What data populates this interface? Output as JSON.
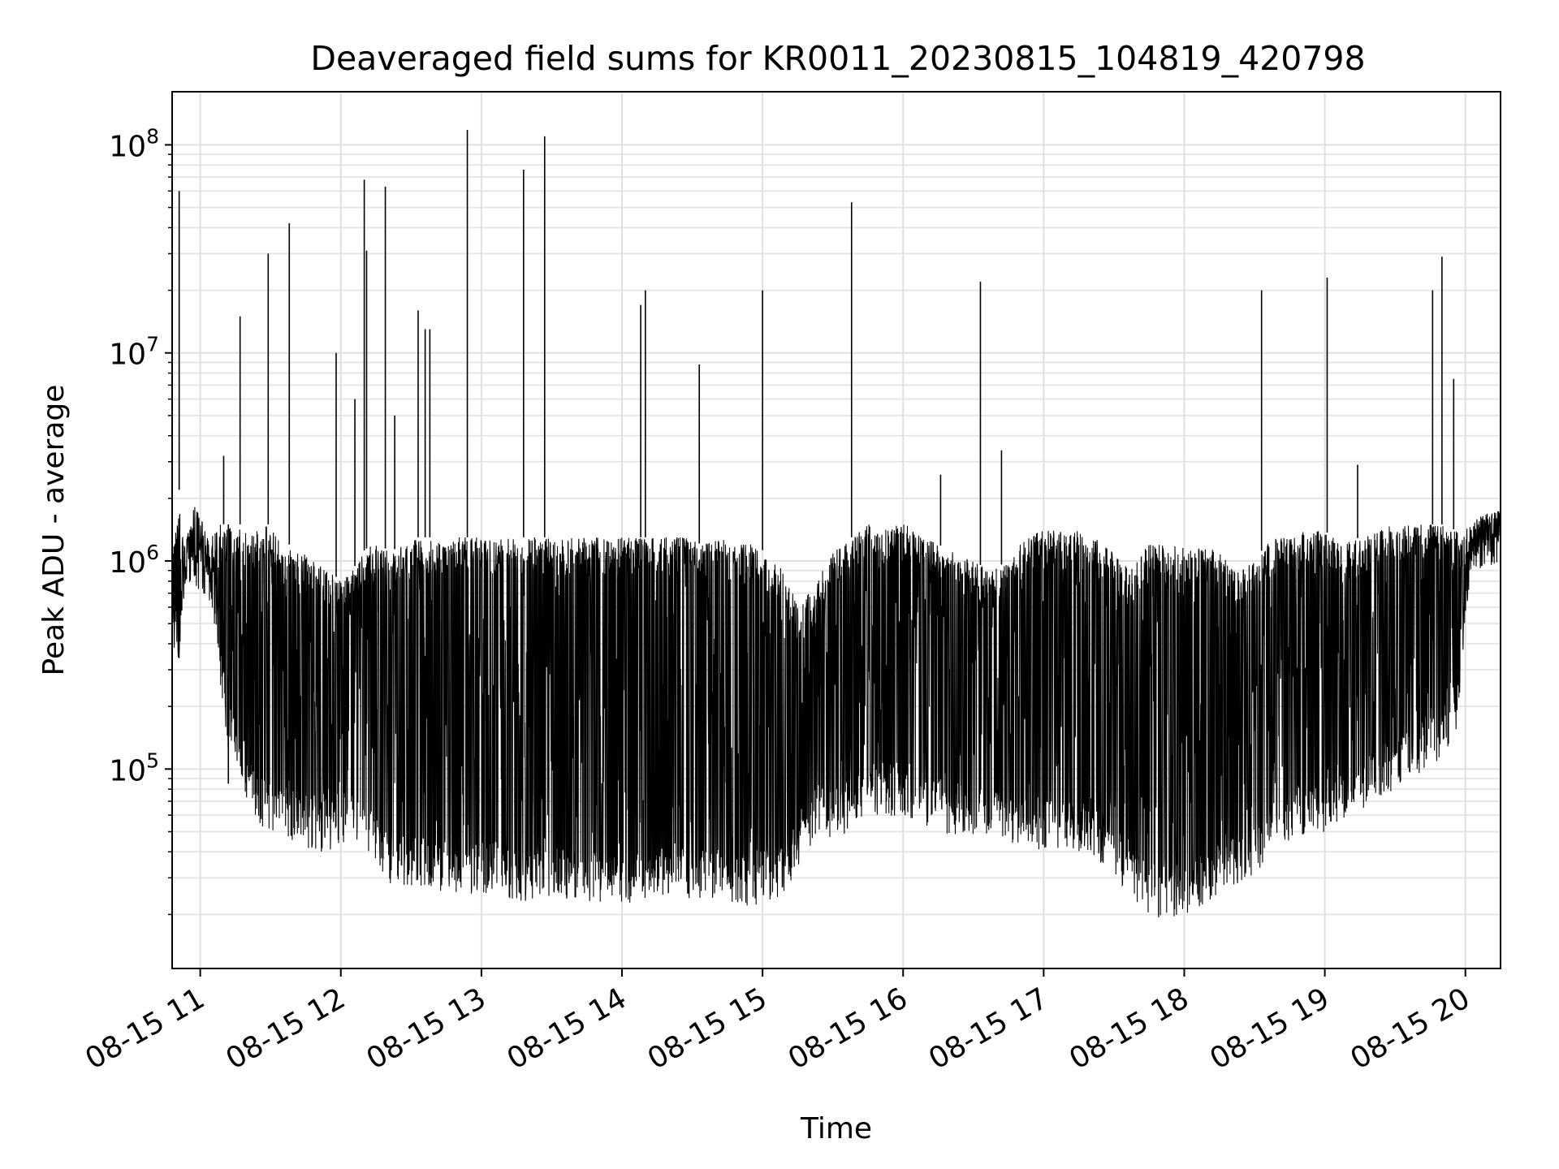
{
  "chart_data": {
    "type": "line",
    "title": "Deaveraged field sums for KR0011_20230815_104819_420798",
    "xlabel": "Time",
    "ylabel": "Peak ADU - average",
    "yscale": "log",
    "ylim": [
      11000,
      180000000
    ],
    "xlim": [
      "2023-08-15 10:48",
      "2023-08-15 20:15"
    ],
    "grid": true,
    "x_ticks": [
      {
        "t": "2023-08-15 11:00",
        "label": "08-15 11"
      },
      {
        "t": "2023-08-15 12:00",
        "label": "08-15 12"
      },
      {
        "t": "2023-08-15 13:00",
        "label": "08-15 13"
      },
      {
        "t": "2023-08-15 14:00",
        "label": "08-15 14"
      },
      {
        "t": "2023-08-15 15:00",
        "label": "08-15 15"
      },
      {
        "t": "2023-08-15 16:00",
        "label": "08-15 16"
      },
      {
        "t": "2023-08-15 17:00",
        "label": "08-15 17"
      },
      {
        "t": "2023-08-15 18:00",
        "label": "08-15 18"
      },
      {
        "t": "2023-08-15 19:00",
        "label": "08-15 19"
      },
      {
        "t": "2023-08-15 20:00",
        "label": "08-15 20"
      }
    ],
    "y_ticks": [
      {
        "value": 100000,
        "base": "10",
        "exp": "5"
      },
      {
        "value": 1000000,
        "base": "10",
        "exp": "6"
      },
      {
        "value": 10000000,
        "base": "10",
        "exp": "7"
      },
      {
        "value": 100000000,
        "base": "10",
        "exp": "8"
      }
    ],
    "series": [
      {
        "color": "#000000",
        "x": [
          "2023-08-15 10:48",
          "2023-08-15 10:51",
          "2023-08-15 10:53",
          "2023-08-15 10:54",
          "2023-08-15 10:56",
          "2023-08-15 10:58",
          "2023-08-15 11:04",
          "2023-08-15 11:07",
          "2023-08-15 11:09",
          "2023-08-15 11:12",
          "2023-08-15 11:17",
          "2023-08-15 11:21",
          "2023-08-15 11:25",
          "2023-08-15 11:29",
          "2023-08-15 11:33",
          "2023-08-15 11:38",
          "2023-08-15 11:44",
          "2023-08-15 11:50",
          "2023-08-15 11:55",
          "2023-08-15 12:00",
          "2023-08-15 12:05",
          "2023-08-15 12:09",
          "2023-08-15 12:13",
          "2023-08-15 12:17",
          "2023-08-15 12:21",
          "2023-08-15 12:26",
          "2023-08-15 12:31",
          "2023-08-15 12:37",
          "2023-08-15 12:43",
          "2023-08-15 12:49",
          "2023-08-15 12:55",
          "2023-08-15 13:00",
          "2023-08-15 13:06",
          "2023-08-15 13:12",
          "2023-08-15 13:18",
          "2023-08-15 13:24",
          "2023-08-15 13:29",
          "2023-08-15 13:35",
          "2023-08-15 13:42",
          "2023-08-15 13:48",
          "2023-08-15 13:55",
          "2023-08-15 14:01",
          "2023-08-15 14:07",
          "2023-08-15 14:14",
          "2023-08-15 14:20",
          "2023-08-15 14:27",
          "2023-08-15 14:34",
          "2023-08-15 14:41",
          "2023-08-15 14:48",
          "2023-08-15 14:55",
          "2023-08-15 15:02",
          "2023-08-15 15:09",
          "2023-08-15 15:16",
          "2023-08-15 15:23",
          "2023-08-15 15:30",
          "2023-08-15 15:38",
          "2023-08-15 15:45",
          "2023-08-15 15:52",
          "2023-08-15 16:00",
          "2023-08-15 16:08",
          "2023-08-15 16:15",
          "2023-08-15 16:22",
          "2023-08-15 16:30",
          "2023-08-15 16:37",
          "2023-08-15 16:45",
          "2023-08-15 16:52",
          "2023-08-15 17:00",
          "2023-08-15 17:07",
          "2023-08-15 17:15",
          "2023-08-15 17:22",
          "2023-08-15 17:30",
          "2023-08-15 17:37",
          "2023-08-15 17:44",
          "2023-08-15 17:52",
          "2023-08-15 18:00",
          "2023-08-15 18:07",
          "2023-08-15 18:15",
          "2023-08-15 18:22",
          "2023-08-15 18:30",
          "2023-08-15 18:37",
          "2023-08-15 18:45",
          "2023-08-15 18:52",
          "2023-08-15 19:00",
          "2023-08-15 19:07",
          "2023-08-15 19:15",
          "2023-08-15 19:22",
          "2023-08-15 19:30",
          "2023-08-15 19:37",
          "2023-08-15 19:45",
          "2023-08-15 19:51",
          "2023-08-15 19:56",
          "2023-08-15 20:02",
          "2023-08-15 20:08",
          "2023-08-15 20:15"
        ],
        "high": [
          1100000,
          2200000,
          1200000,
          1300000,
          1500000,
          2000000,
          1200000,
          1600000,
          1500000,
          1500000,
          1500000,
          1400000,
          1400000,
          1500000,
          1300000,
          1200000,
          1100000,
          1000000,
          900000,
          800000,
          900000,
          1100000,
          1200000,
          1200000,
          1100000,
          1200000,
          1300000,
          1300000,
          1300000,
          1300000,
          1300000,
          1300000,
          1300000,
          1300000,
          1300000,
          1300000,
          1300000,
          1300000,
          1300000,
          1300000,
          1300000,
          1300000,
          1300000,
          1300000,
          1300000,
          1300000,
          1200000,
          1300000,
          1200000,
          1200000,
          1100000,
          900000,
          600000,
          800000,
          1100000,
          1300000,
          1500000,
          1500000,
          1500000,
          1400000,
          1200000,
          1100000,
          1000000,
          900000,
          1000000,
          1300000,
          1400000,
          1400000,
          1400000,
          1300000,
          1100000,
          900000,
          1200000,
          1200000,
          1200000,
          1200000,
          1100000,
          900000,
          1000000,
          1300000,
          1300000,
          1400000,
          1400000,
          1200000,
          1300000,
          1400000,
          1500000,
          1500000,
          1500000,
          1500000,
          1400000,
          1500000,
          1700000,
          1800000
        ],
        "low": [
          400000,
          300000,
          600000,
          700000,
          800000,
          750000,
          600000,
          450000,
          200000,
          120000,
          90000,
          65000,
          55000,
          50000,
          48000,
          45000,
          42000,
          40000,
          40000,
          45000,
          42000,
          38000,
          35000,
          30000,
          28000,
          27000,
          27000,
          26000,
          25000,
          24000,
          24000,
          25000,
          25000,
          24000,
          23000,
          24000,
          24000,
          24000,
          23000,
          23000,
          23000,
          22000,
          23000,
          24000,
          25000,
          24000,
          23000,
          23000,
          22000,
          22000,
          23000,
          25000,
          35000,
          48000,
          45000,
          50000,
          60000,
          60000,
          58000,
          55000,
          50000,
          48000,
          48000,
          46000,
          45000,
          42000,
          40000,
          42000,
          40000,
          38000,
          30000,
          25000,
          20000,
          19000,
          20000,
          22000,
          25000,
          28000,
          30000,
          40000,
          45000,
          48000,
          50000,
          55000,
          60000,
          70000,
          80000,
          90000,
          100000,
          120000,
          150000,
          800000,
          900000,
          1000000
        ]
      }
    ],
    "spikes": [
      {
        "x": "2023-08-15 10:51",
        "y": 60000000
      },
      {
        "x": "2023-08-15 11:10",
        "y": 3200000
      },
      {
        "x": "2023-08-15 11:12",
        "y": 85000
      },
      {
        "x": "2023-08-15 11:17",
        "y": 15000000
      },
      {
        "x": "2023-08-15 11:29",
        "y": 30000000
      },
      {
        "x": "2023-08-15 11:38",
        "y": 42000000
      },
      {
        "x": "2023-08-15 11:58",
        "y": 10000000
      },
      {
        "x": "2023-08-15 12:06",
        "y": 6000000
      },
      {
        "x": "2023-08-15 12:10",
        "y": 68000000
      },
      {
        "x": "2023-08-15 12:11",
        "y": 31000000
      },
      {
        "x": "2023-08-15 12:19",
        "y": 63000000
      },
      {
        "x": "2023-08-15 12:23",
        "y": 5000000
      },
      {
        "x": "2023-08-15 12:33",
        "y": 16000000
      },
      {
        "x": "2023-08-15 12:36",
        "y": 13000000
      },
      {
        "x": "2023-08-15 12:38",
        "y": 13000000
      },
      {
        "x": "2023-08-15 12:54",
        "y": 118000000
      },
      {
        "x": "2023-08-15 13:18",
        "y": 76000000
      },
      {
        "x": "2023-08-15 13:27",
        "y": 110000000
      },
      {
        "x": "2023-08-15 14:08",
        "y": 17000000
      },
      {
        "x": "2023-08-15 14:10",
        "y": 20000000
      },
      {
        "x": "2023-08-15 14:33",
        "y": 8800000
      },
      {
        "x": "2023-08-15 15:00",
        "y": 20000000
      },
      {
        "x": "2023-08-15 15:38",
        "y": 53000000
      },
      {
        "x": "2023-08-15 16:16",
        "y": 2600000
      },
      {
        "x": "2023-08-15 16:33",
        "y": 22000000
      },
      {
        "x": "2023-08-15 16:42",
        "y": 3400000
      },
      {
        "x": "2023-08-15 18:33",
        "y": 20000000
      },
      {
        "x": "2023-08-15 19:01",
        "y": 23000000
      },
      {
        "x": "2023-08-15 19:14",
        "y": 2900000
      },
      {
        "x": "2023-08-15 19:46",
        "y": 20000000
      },
      {
        "x": "2023-08-15 19:50",
        "y": 29000000
      },
      {
        "x": "2023-08-15 19:55",
        "y": 7500000
      }
    ]
  }
}
